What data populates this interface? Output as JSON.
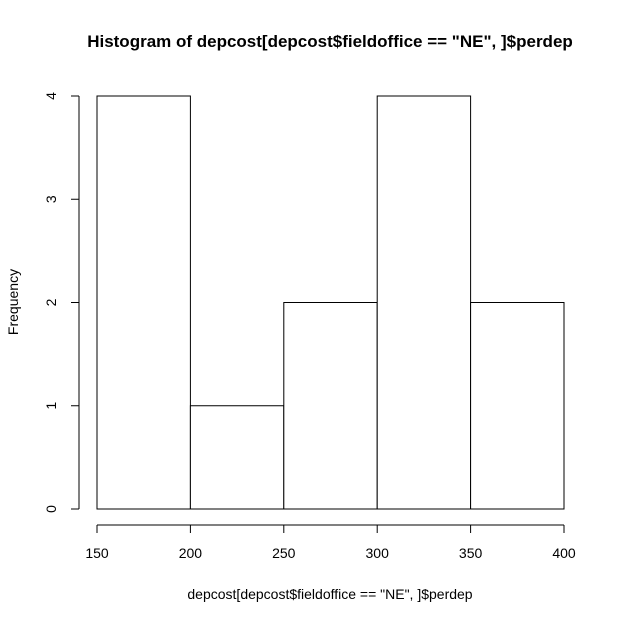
{
  "chart_data": {
    "type": "bar",
    "title": "Histogram of depcost[depcost$fieldoffice == \"NE\", ]$perdep",
    "xlabel": "depcost[depcost$fieldoffice == \"NE\", ]$perdep",
    "ylabel": "Frequency",
    "bins": [
      {
        "from": 150,
        "to": 200,
        "count": 4
      },
      {
        "from": 200,
        "to": 250,
        "count": 1
      },
      {
        "from": 250,
        "to": 300,
        "count": 2
      },
      {
        "from": 300,
        "to": 350,
        "count": 4
      },
      {
        "from": 350,
        "to": 400,
        "count": 2
      }
    ],
    "xlim": [
      150,
      400
    ],
    "ylim": [
      0,
      4
    ],
    "x_ticks": [
      150,
      200,
      250,
      300,
      350,
      400
    ],
    "y_ticks": [
      0,
      1,
      2,
      3,
      4
    ],
    "grid": false,
    "colors": {
      "bar_fill": "#ffffff",
      "bar_stroke": "#000000"
    }
  }
}
